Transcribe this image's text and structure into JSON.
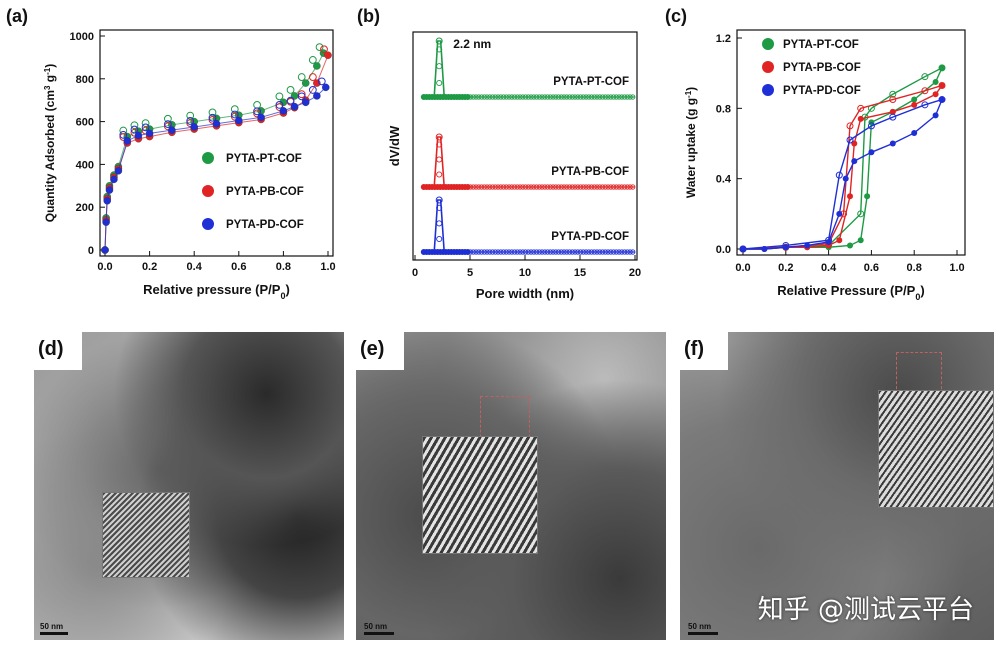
{
  "panels": {
    "a": {
      "label": "(a)"
    },
    "b": {
      "label": "(b)"
    },
    "c": {
      "label": "(c)"
    },
    "d": {
      "label": "(d)",
      "scale": "50 nm"
    },
    "e": {
      "label": "(e)",
      "scale": "50 nm"
    },
    "f": {
      "label": "(f)",
      "scale": "50 nm"
    }
  },
  "watermark": "知乎 @测试云平台",
  "colors": {
    "pt": "#1e9a45",
    "pb": "#e02424",
    "pd": "#1f2fd6"
  },
  "chart_data": [
    {
      "type": "scatter",
      "panel": "a",
      "xlabel": "Relative pressure (P/P",
      "xlabel_sub": "0",
      "xlabel_end": ")",
      "ylabel": "Quantity Adsorbed (cm",
      "ylabel_sup1": "3",
      "ylabel_mid": " g",
      "ylabel_sup2": "-1",
      "ylabel_end": ")",
      "xlim": [
        0,
        1.0
      ],
      "ylim": [
        0,
        1000
      ],
      "xticks": [
        "0.0",
        "0.2",
        "0.4",
        "0.6",
        "0.8",
        "1.0"
      ],
      "yticks": [
        "0",
        "200",
        "400",
        "600",
        "800",
        "1000"
      ],
      "legend": [
        "PYTA-PT-COF",
        "PYTA-PB-COF",
        "PYTA-PD-COF"
      ],
      "series": [
        {
          "name": "PYTA-PT-COF",
          "x": [
            0,
            0.005,
            0.01,
            0.02,
            0.04,
            0.06,
            0.1,
            0.15,
            0.2,
            0.3,
            0.4,
            0.5,
            0.6,
            0.7,
            0.8,
            0.85,
            0.9,
            0.95,
            0.98
          ],
          "y": [
            0,
            150,
            250,
            300,
            350,
            390,
            530,
            555,
            565,
            585,
            600,
            615,
            630,
            650,
            690,
            720,
            780,
            860,
            920
          ]
        },
        {
          "name": "PYTA-PB-COF",
          "x": [
            0,
            0.005,
            0.01,
            0.02,
            0.04,
            0.06,
            0.1,
            0.15,
            0.2,
            0.3,
            0.4,
            0.5,
            0.6,
            0.7,
            0.8,
            0.85,
            0.9,
            0.95,
            1.0
          ],
          "y": [
            0,
            140,
            240,
            290,
            340,
            380,
            500,
            520,
            530,
            550,
            565,
            580,
            595,
            610,
            640,
            665,
            700,
            780,
            910
          ]
        },
        {
          "name": "PYTA-PD-COF",
          "x": [
            0,
            0.005,
            0.01,
            0.02,
            0.04,
            0.06,
            0.1,
            0.15,
            0.2,
            0.3,
            0.4,
            0.5,
            0.6,
            0.7,
            0.8,
            0.85,
            0.9,
            0.95,
            0.99
          ],
          "y": [
            0,
            130,
            230,
            280,
            330,
            370,
            510,
            535,
            545,
            560,
            575,
            590,
            605,
            620,
            650,
            670,
            690,
            720,
            760
          ]
        }
      ]
    },
    {
      "type": "line",
      "panel": "b",
      "xlabel": "Pore width (nm)",
      "ylabel": "dV/dW",
      "xlim": [
        0,
        20
      ],
      "xticks": [
        "0",
        "5",
        "10",
        "15",
        "20"
      ],
      "annotation": "2.2 nm",
      "series": [
        {
          "name": "PYTA-PT-COF",
          "peak_x": 2.2,
          "baseline": "top"
        },
        {
          "name": "PYTA-PB-COF",
          "peak_x": 2.2,
          "baseline": "middle"
        },
        {
          "name": "PYTA-PD-COF",
          "peak_x": 2.2,
          "baseline": "bottom"
        }
      ]
    },
    {
      "type": "line",
      "panel": "c",
      "xlabel": "Relative Pressure (P/P",
      "xlabel_sub": "0",
      "xlabel_end": ")",
      "ylabel": "Water uptake (g g",
      "ylabel_sup": "-1",
      "ylabel_end": ")",
      "xlim": [
        0,
        1.0
      ],
      "ylim": [
        0,
        1.2
      ],
      "xticks": [
        "0.0",
        "0.2",
        "0.4",
        "0.6",
        "0.8",
        "1.0"
      ],
      "yticks": [
        "0.0",
        "0.4",
        "0.8",
        "1.2"
      ],
      "legend": [
        "PYTA-PT-COF",
        "PYTA-PB-COF",
        "PYTA-PD-COF"
      ],
      "series": [
        {
          "name": "PYTA-PT-COF",
          "x": [
            0,
            0.1,
            0.2,
            0.3,
            0.4,
            0.5,
            0.55,
            0.58,
            0.6,
            0.7,
            0.8,
            0.9,
            0.93
          ],
          "y": [
            0,
            0,
            0.01,
            0.01,
            0.01,
            0.02,
            0.05,
            0.3,
            0.72,
            0.78,
            0.85,
            0.95,
            1.03
          ],
          "desorb_x": [
            0.93,
            0.85,
            0.7,
            0.6,
            0.57,
            0.55,
            0.4,
            0.2,
            0
          ],
          "desorb_y": [
            1.03,
            0.98,
            0.88,
            0.8,
            0.75,
            0.2,
            0.02,
            0.01,
            0
          ]
        },
        {
          "name": "PYTA-PB-COF",
          "x": [
            0,
            0.1,
            0.2,
            0.3,
            0.4,
            0.45,
            0.5,
            0.52,
            0.55,
            0.7,
            0.8,
            0.9,
            0.93
          ],
          "y": [
            0,
            0,
            0.01,
            0.01,
            0.02,
            0.05,
            0.3,
            0.6,
            0.74,
            0.78,
            0.82,
            0.88,
            0.93
          ],
          "desorb_x": [
            0.93,
            0.85,
            0.7,
            0.55,
            0.5,
            0.47,
            0.4,
            0.2,
            0
          ],
          "desorb_y": [
            0.93,
            0.9,
            0.85,
            0.8,
            0.7,
            0.2,
            0.03,
            0.01,
            0
          ]
        },
        {
          "name": "PYTA-PD-COF",
          "x": [
            0,
            0.1,
            0.2,
            0.3,
            0.4,
            0.45,
            0.48,
            0.52,
            0.6,
            0.7,
            0.8,
            0.9,
            0.93
          ],
          "y": [
            0,
            0,
            0.01,
            0.02,
            0.04,
            0.2,
            0.4,
            0.5,
            0.55,
            0.6,
            0.66,
            0.76,
            0.85
          ],
          "desorb_x": [
            0.93,
            0.85,
            0.7,
            0.6,
            0.5,
            0.45,
            0.4,
            0.2,
            0
          ],
          "desorb_y": [
            0.85,
            0.82,
            0.75,
            0.7,
            0.62,
            0.42,
            0.05,
            0.02,
            0
          ]
        }
      ]
    }
  ]
}
